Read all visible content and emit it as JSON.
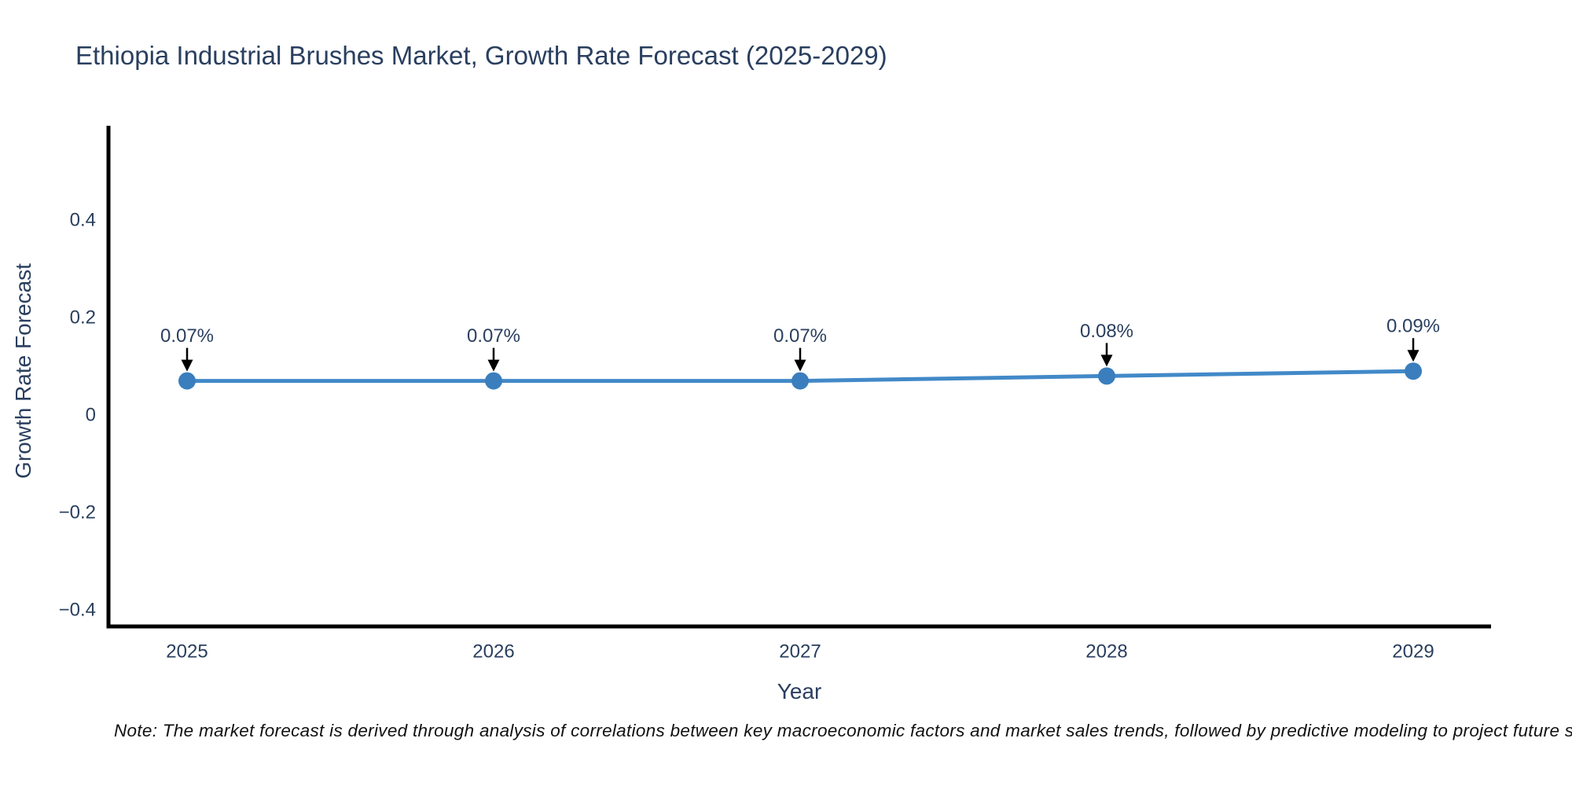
{
  "title": "Ethiopia Industrial Brushes Market, Growth Rate Forecast (2025-2029)",
  "note": "Note: The market forecast is derived through analysis of correlations between key macroeconomic factors and market sales trends, followed by predictive modeling to project future sales.",
  "chart_data": {
    "type": "line",
    "title": "Ethiopia Industrial Brushes Market, Growth Rate Forecast (2025-2029)",
    "xlabel": "Year",
    "ylabel": "Growth Rate Forecast",
    "x": [
      "2025",
      "2026",
      "2027",
      "2028",
      "2029"
    ],
    "series": [
      {
        "name": "Growth Rate Forecast",
        "values": [
          0.07,
          0.07,
          0.07,
          0.08,
          0.09
        ]
      }
    ],
    "point_labels": [
      "0.07%",
      "0.07%",
      "0.07%",
      "0.08%",
      "0.09%"
    ],
    "yticks": [
      0.4,
      0.2,
      0,
      -0.2,
      -0.4
    ],
    "ytick_labels": [
      "0.4",
      "0.2",
      "0",
      "−0.2",
      "−0.4"
    ],
    "ylim": [
      -0.43,
      0.59
    ],
    "grid": false,
    "legend_position": "none",
    "marker_style": "filled-circle",
    "annotation_arrow_direction": "down",
    "colors": {
      "line": "#4289c8",
      "marker": "#3a7ebd",
      "axis": "#000000",
      "text": "#2a3f5f",
      "annotation_arrow": "#000000",
      "note_text": "#111111",
      "background": "#ffffff"
    }
  }
}
